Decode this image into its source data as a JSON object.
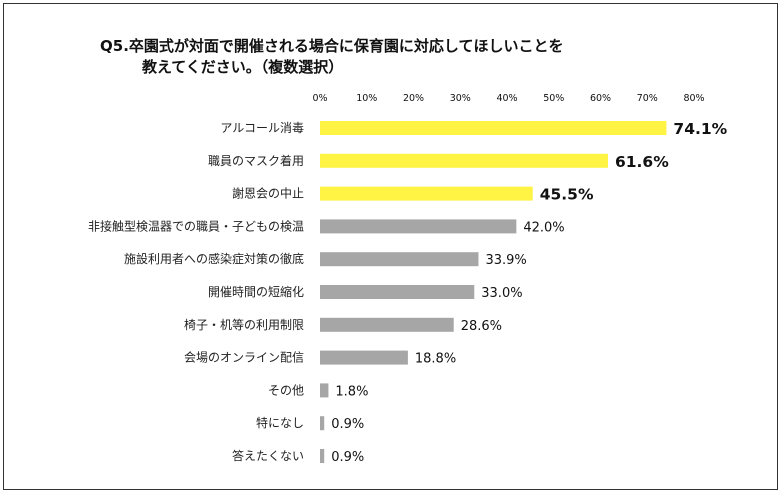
{
  "title_line1": "Q5.卒園式が対面で開催される場合に保育園に対応してほしいことを",
  "title_line2": "教えてください。（複数選択）",
  "colors": {
    "highlight": "#FFF444",
    "normal": "#A6A6A6",
    "frame": "#333333"
  },
  "chart_data": {
    "type": "bar",
    "orientation": "horizontal",
    "title": "Q5.卒園式が対面で開催される場合に保育園に対応してほしいことを教えてください。（複数選択）",
    "xlim": [
      0,
      80
    ],
    "xticks": [
      "0%",
      "10%",
      "20%",
      "30%",
      "40%",
      "50%",
      "60%",
      "70%",
      "80%"
    ],
    "grid": false,
    "categories": [
      "アルコール消毒",
      "職員のマスク着用",
      "謝恩会の中止",
      "非接触型検温器での職員・子どもの検温",
      "施設利用者への感染症対策の徹底",
      "開催時間の短縮化",
      "椅子・机等の利用制限",
      "会場のオンライン配信",
      "その他",
      "特になし",
      "答えたくない"
    ],
    "values": [
      74.1,
      61.6,
      45.5,
      42.0,
      33.9,
      33.0,
      28.6,
      18.8,
      1.8,
      0.9,
      0.9
    ],
    "labels": [
      "74.1%",
      "61.6%",
      "45.5%",
      "42.0%",
      "33.9%",
      "33.0%",
      "28.6%",
      "18.8%",
      "1.8%",
      "0.9%",
      "0.9%"
    ],
    "highlighted": [
      true,
      true,
      true,
      false,
      false,
      false,
      false,
      false,
      false,
      false,
      false
    ]
  }
}
